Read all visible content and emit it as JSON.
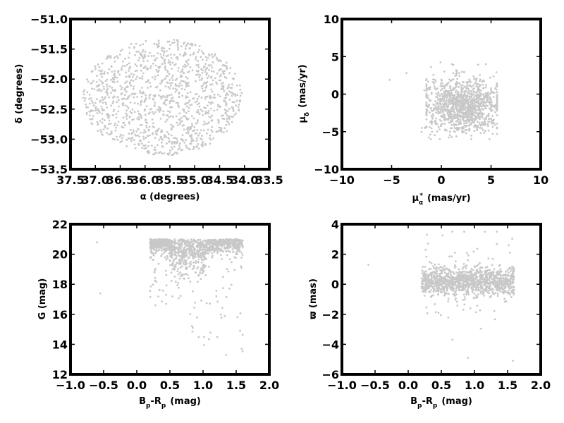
{
  "colors": {
    "points": "#c8c8c8",
    "axes": "#000000",
    "background": "#ffffff"
  },
  "chart_data": [
    {
      "type": "scatter",
      "id": "ra-dec",
      "xlabel": "α (degrees)",
      "ylabel": "δ (degrees)",
      "xlim": [
        37.5,
        33.5
      ],
      "ylim": [
        -53.5,
        -51.0
      ],
      "xticks": [
        37.5,
        37.0,
        36.5,
        36.0,
        35.5,
        35.0,
        34.5,
        34.0,
        33.5
      ],
      "xticklabels": [
        "37.5",
        "37.0",
        "36.5",
        "36.0",
        "35.5",
        "35.0",
        "34.5",
        "34.0",
        "33.5"
      ],
      "yticks": [
        -51.0,
        -51.5,
        -52.0,
        -52.5,
        -53.0,
        -53.5
      ],
      "yticklabels": [
        "−51.0",
        "−51.5",
        "−52.0",
        "−52.5",
        "−53.0",
        "−53.5"
      ],
      "grid": false,
      "point_distribution": {
        "shape": "ellipse",
        "center": [
          35.65,
          -52.3
        ],
        "radii": [
          1.6,
          0.97
        ],
        "count": 1200,
        "seed": 11
      },
      "points": [
        [
          35.6,
          -52.3
        ],
        [
          36.2,
          -51.6
        ],
        [
          34.9,
          -52.9
        ],
        [
          36.9,
          -52.7
        ],
        [
          34.3,
          -51.9
        ]
      ]
    },
    {
      "type": "scatter",
      "id": "proper-motion",
      "xlabel": "μα* (mas/yr)",
      "xlabel_parts": {
        "sym": "μ",
        "sub": "α",
        "sup": "*",
        "unit": "(mas/yr)"
      },
      "ylabel": "μδ (mas/yr)",
      "ylabel_parts": {
        "sym": "μ",
        "sub": "δ",
        "unit": "(mas/yr)"
      },
      "xlim": [
        -10,
        10
      ],
      "ylim": [
        -10,
        10
      ],
      "xticks": [
        -10,
        -5,
        0,
        5,
        10
      ],
      "xticklabels": [
        "−10",
        "−5",
        "0",
        "5",
        "10"
      ],
      "yticks": [
        10,
        5,
        0,
        -5,
        -10
      ],
      "yticklabels": [
        "10",
        "5",
        "0",
        "−5",
        "−10"
      ],
      "grid": false,
      "point_distribution": {
        "shape": "cluster",
        "center": [
          2.2,
          -1.5
        ],
        "spread": [
          1.8,
          1.7
        ],
        "count": 1200,
        "seed": 23
      },
      "points": [
        [
          -5.2,
          1.9
        ],
        [
          -3.5,
          2.8
        ],
        [
          0.0,
          0.0
        ],
        [
          4.6,
          -0.3
        ],
        [
          2.5,
          -3.5
        ]
      ]
    },
    {
      "type": "scatter",
      "id": "cmd-g",
      "xlabel": "Bp-Rp  (mag)",
      "xlabel_parts": {
        "a": "B",
        "asub": "p",
        "b": "-R",
        "bsub": "p",
        "unit": "(mag)"
      },
      "ylabel": "G (mag)",
      "xlim": [
        -1.0,
        2.0
      ],
      "ylim": [
        12,
        22
      ],
      "xticks": [
        -1.0,
        -0.5,
        0.0,
        0.5,
        1.0,
        1.5,
        2.0
      ],
      "xticklabels": [
        "−1.0",
        "−0.5",
        "0.0",
        "0.5",
        "1.0",
        "1.5",
        "2.0"
      ],
      "yticks": [
        22,
        20,
        18,
        16,
        14,
        12
      ],
      "yticklabels": [
        "22",
        "20",
        "18",
        "16",
        "14",
        "12"
      ],
      "grid": false,
      "point_distribution": {
        "shape": "cmd-band",
        "x_range": [
          0.2,
          1.6
        ],
        "y_range": [
          17.5,
          21.0
        ],
        "count": 1200,
        "seed": 37
      },
      "points": [
        [
          -0.55,
          17.4
        ],
        [
          -0.6,
          20.8
        ],
        [
          0.75,
          20.3
        ],
        [
          1.35,
          13.3
        ],
        [
          1.5,
          20.0
        ]
      ]
    },
    {
      "type": "scatter",
      "id": "cmd-parallax",
      "xlabel": "Bp-Rp  (mag)",
      "xlabel_parts": {
        "a": "B",
        "asub": "p",
        "b": "-R",
        "bsub": "p",
        "unit": "(mag)"
      },
      "ylabel": "ϖ (mas)",
      "xlim": [
        -1.0,
        2.0
      ],
      "ylim": [
        -6,
        4
      ],
      "xticks": [
        -1.0,
        -0.5,
        0.0,
        0.5,
        1.0,
        1.5,
        2.0
      ],
      "xticklabels": [
        "−1.0",
        "−0.5",
        "0.0",
        "0.5",
        "1.0",
        "1.5",
        "2.0"
      ],
      "yticks": [
        4,
        2,
        0,
        -2,
        -4,
        -6
      ],
      "yticklabels": [
        "4",
        "2",
        "0",
        "−2",
        "−4",
        "−6"
      ],
      "grid": false,
      "point_distribution": {
        "shape": "band",
        "x_range": [
          0.2,
          1.6
        ],
        "center_y": 0.2,
        "spread_y": 0.45,
        "count": 1200,
        "seed": 53
      },
      "points": [
        [
          -0.6,
          1.3
        ],
        [
          0.28,
          3.3
        ],
        [
          0.75,
          0.1
        ],
        [
          1.58,
          -5.1
        ],
        [
          0.9,
          -4.9
        ]
      ]
    }
  ]
}
